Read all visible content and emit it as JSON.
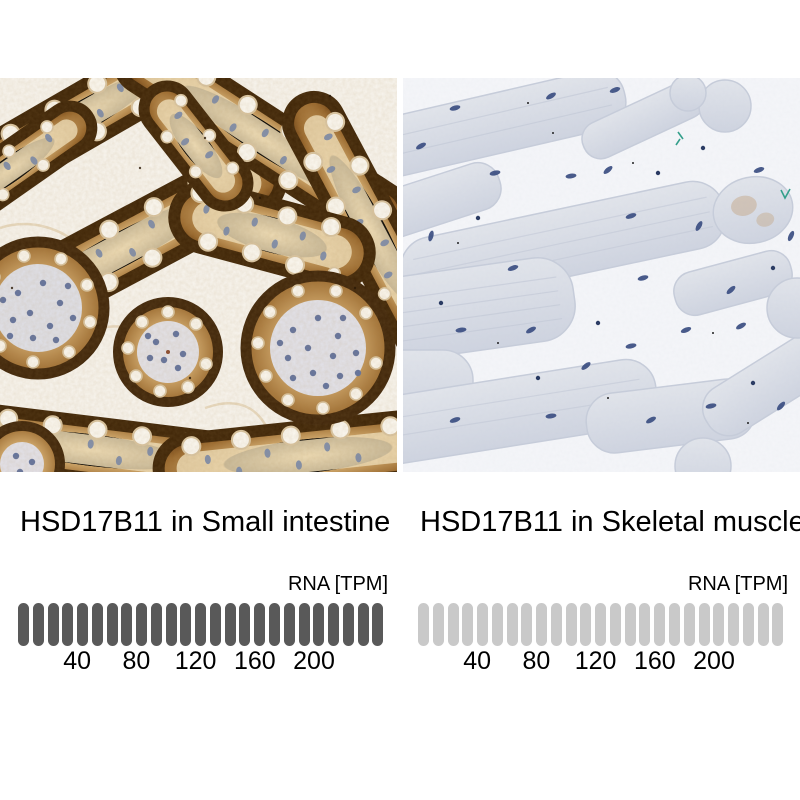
{
  "panels": [
    {
      "id": "small-intestine",
      "title": "HSD17B11 in Small intestine",
      "rna_axis_label": "RNA [TPM]",
      "scale": {
        "segments": 25,
        "segment_color": "#595959",
        "tpm_per_segment": 10,
        "axis_max": 250,
        "ticks": [
          40,
          80,
          120,
          160,
          200
        ]
      }
    },
    {
      "id": "skeletal-muscle",
      "title": "HSD17B11 in Skeletal muscle",
      "rna_axis_label": "RNA [TPM]",
      "scale": {
        "segments": 25,
        "segment_color": "#c9c9c9",
        "tpm_per_segment": 10,
        "axis_max": 250,
        "ticks": [
          40,
          80,
          120,
          160,
          200
        ]
      }
    }
  ],
  "chart_data": [
    {
      "type": "bar",
      "title": "HSD17B11 in Small intestine",
      "xlabel": "RNA [TPM]",
      "axis_ticks": [
        40,
        80,
        120,
        160,
        200
      ],
      "axis_range": [
        0,
        250
      ],
      "segments": 25,
      "segment_value_tpm": 10,
      "segment_color": "#595959",
      "appearance": "all 25 segments dark grey (high RNA expression); strong brown IHC staining in intestinal epithelium"
    },
    {
      "type": "bar",
      "title": "HSD17B11 in Skeletal muscle",
      "xlabel": "RNA [TPM]",
      "axis_ticks": [
        40,
        80,
        120,
        160,
        200
      ],
      "axis_range": [
        0,
        250
      ],
      "segments": 25,
      "segment_value_tpm": 10,
      "segment_color": "#c9c9c9",
      "appearance": "all 25 segments light grey (low RNA expression); pale blue-grey IHC staining of muscle fibres"
    }
  ]
}
